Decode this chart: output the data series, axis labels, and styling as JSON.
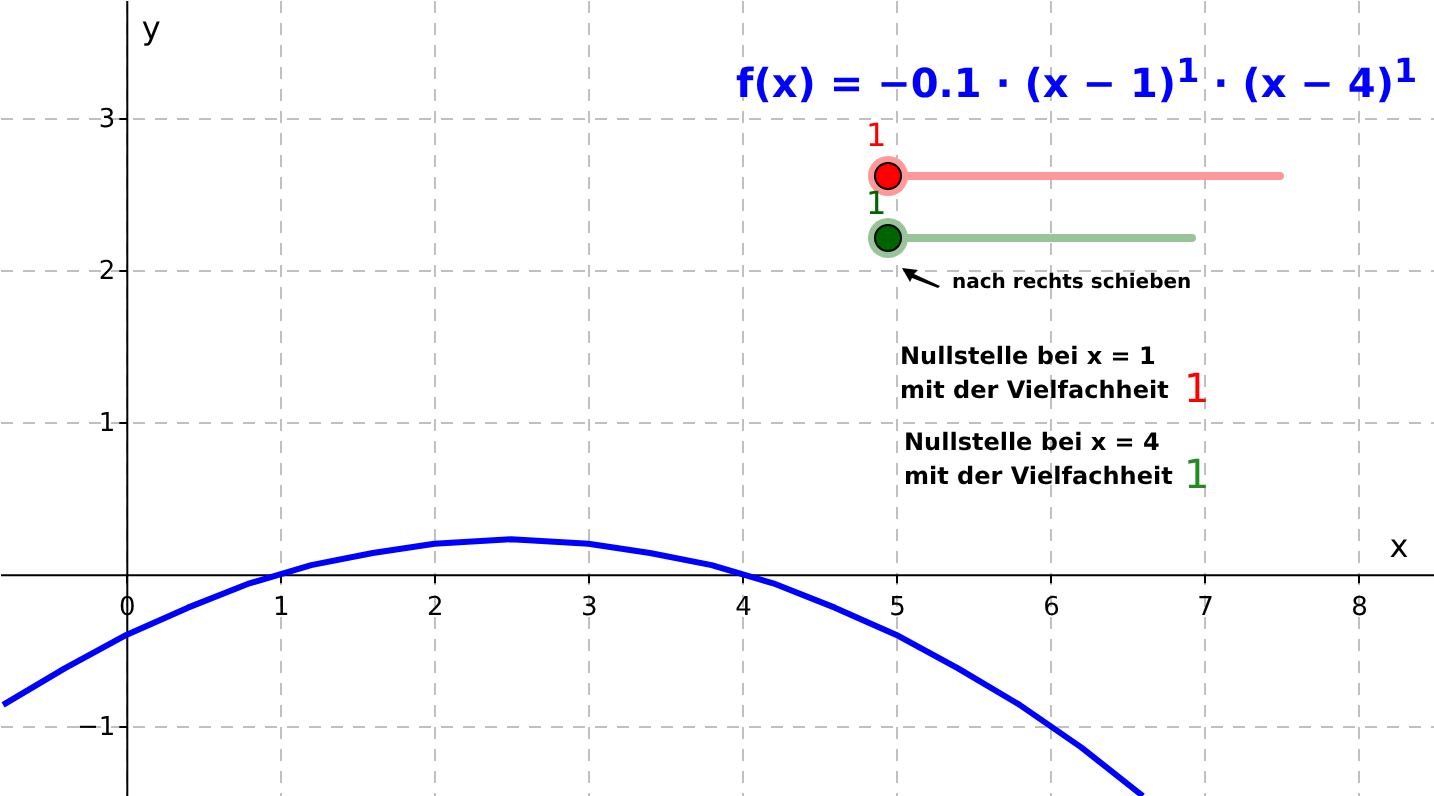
{
  "chart_data": {
    "type": "line",
    "title": "f(x) = −0.1 · (x − 1)$^{1}$ · (x − 4)$^{1}$",
    "xlabel": "x",
    "ylabel": "y",
    "x": [
      -0.8,
      -0.4,
      0,
      0.4,
      0.8,
      1.2,
      1.6,
      2.0,
      2.5,
      3.0,
      3.4,
      3.8,
      4.2,
      4.6,
      5.0,
      5.4,
      5.8,
      6.2,
      6.6
    ],
    "series": [
      {
        "color": "#0000ff",
        "values": [
          -0.86,
          -0.62,
          -0.4,
          -0.22,
          -0.06,
          0.06,
          0.14,
          0.2,
          0.23,
          0.2,
          0.14,
          0.06,
          -0.06,
          -0.22,
          -0.4,
          -0.62,
          -0.86,
          -1.14,
          -1.46
        ]
      }
    ],
    "xlim": [
      -0.82,
      8.49
    ],
    "ylim": [
      -1.46,
      3.78
    ],
    "xticks": [
      0,
      1,
      2,
      3,
      4,
      5,
      6,
      7,
      8
    ],
    "yticks": [
      {
        "value": -1,
        "label": "−1"
      },
      1,
      2,
      3
    ],
    "grid": true,
    "marker": "none",
    "line_style": "solid",
    "annotations": [
      "1",
      "1",
      "nach rechts schieben",
      "Nullstelle bei x = 1",
      "mit der Vielfachheit",
      "1",
      "Nullstelle bei x = 4",
      "mit der Vielfachheit",
      "1"
    ]
  }
}
